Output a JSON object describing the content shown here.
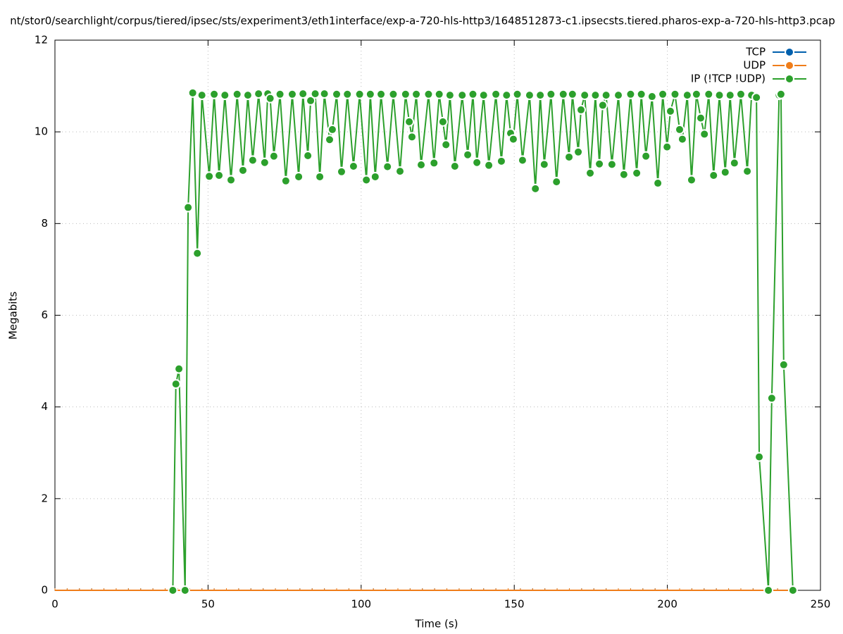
{
  "chart_data": {
    "type": "line",
    "title": "nt/stor0/searchlight/corpus/tiered/ipsec/sts/experiment3/eth1interface/exp-a-720-hls-http3/1648512873-c1.ipsecsts.tiered.pharos-exp-a-720-hls-http3.pcap",
    "x_label": "Time (s)",
    "y_label": "Megabits",
    "xlim": [
      0,
      250
    ],
    "xticks": [
      0,
      50,
      100,
      150,
      200,
      250
    ],
    "ylim": [
      0,
      12
    ],
    "yticks": [
      0,
      2,
      4,
      6,
      8,
      10,
      12
    ],
    "grid": true,
    "legend": "top-right",
    "series": [
      {
        "name": "TCP",
        "color": "#0060ad",
        "x": [
          0,
          4,
          8,
          12,
          16,
          20,
          24,
          28,
          32,
          36,
          40,
          44,
          48,
          52,
          56,
          60,
          64,
          68,
          72,
          76,
          80,
          84,
          88,
          92,
          96,
          100,
          104,
          108,
          112,
          116,
          120,
          124,
          128,
          132,
          136,
          140,
          144,
          148,
          152,
          156,
          160,
          164,
          168,
          172,
          176,
          180,
          184,
          188,
          192,
          196,
          200,
          204,
          208,
          212,
          216,
          220,
          224,
          228,
          232,
          236,
          240
        ],
        "values": [
          0,
          0,
          0,
          0,
          0,
          0,
          0,
          0,
          0,
          0,
          0,
          0,
          0,
          0,
          0,
          0,
          0,
          0,
          0,
          0,
          0,
          0,
          0,
          0,
          0,
          0,
          0,
          0,
          0,
          0,
          0,
          0,
          0,
          0,
          0,
          0,
          0,
          0,
          0,
          0,
          0,
          0,
          0,
          0,
          0,
          0,
          0,
          0,
          0,
          0,
          0,
          0,
          0,
          0,
          0,
          0,
          0,
          0,
          0,
          0,
          0
        ]
      },
      {
        "name": "UDP",
        "color": "#ef7d1a",
        "x": [
          0,
          4,
          8,
          12,
          16,
          20,
          24,
          28,
          32,
          36,
          40,
          44,
          48,
          52,
          56,
          60,
          64,
          68,
          72,
          76,
          80,
          84,
          88,
          92,
          96,
          100,
          104,
          108,
          112,
          116,
          120,
          124,
          128,
          132,
          136,
          140,
          144,
          148,
          152,
          156,
          160,
          164,
          168,
          172,
          176,
          180,
          184,
          188,
          192,
          196,
          200,
          204,
          208,
          212,
          216,
          220,
          224,
          228,
          232,
          236,
          240
        ],
        "values": [
          0,
          0,
          0,
          0,
          0,
          0,
          0,
          0,
          0,
          0,
          0,
          0,
          0,
          0,
          0,
          0,
          0,
          0,
          0,
          0,
          0,
          0,
          0,
          0,
          0,
          0,
          0,
          0,
          0,
          0,
          0,
          0,
          0,
          0,
          0,
          0,
          0,
          0,
          0,
          0,
          0,
          0,
          0,
          0,
          0,
          0,
          0,
          0,
          0,
          0,
          0,
          0,
          0,
          0,
          0,
          0,
          0,
          0,
          0,
          0,
          0
        ]
      },
      {
        "name": "IP (!TCP  !UDP)",
        "color": "#2ca02c",
        "x": [
          38.5,
          39.5,
          40.5,
          42.5,
          43.5,
          45,
          46.5,
          48,
          50.4,
          52,
          53.6,
          55.5,
          57.5,
          59.5,
          61.4,
          63,
          64.6,
          66.5,
          68.5,
          69.5,
          70.3,
          71.5,
          73.5,
          75.4,
          77.5,
          79.6,
          81,
          82.6,
          83.5,
          85,
          86.5,
          88,
          89.7,
          90.6,
          92,
          93.6,
          95.5,
          97.5,
          99.5,
          101.7,
          103,
          104.6,
          106.5,
          108.6,
          110.5,
          112.7,
          114.5,
          115.7,
          116.6,
          118,
          119.6,
          122,
          123.8,
          125.5,
          126.7,
          127.7,
          129,
          130.6,
          133,
          134.8,
          136.5,
          137.8,
          140,
          141.7,
          144,
          145.8,
          147.5,
          148.8,
          149.7,
          151,
          152.7,
          155,
          156.9,
          158.5,
          159.8,
          162,
          163.8,
          166,
          167.9,
          169,
          170.9,
          171.8,
          173,
          174.8,
          176.5,
          177.8,
          178.9,
          180,
          181.9,
          184,
          185.8,
          188,
          190,
          191.5,
          193,
          195,
          196.9,
          198.5,
          199.9,
          201,
          202.5,
          204,
          204.9,
          206.5,
          207.9,
          209.5,
          210.9,
          212.1,
          213.5,
          215.1,
          217,
          218.9,
          220.5,
          221.9,
          224,
          226.1,
          227.5,
          229.1,
          230,
          233,
          234.1,
          236.5,
          237.1,
          238,
          241
        ],
        "values": [
          0,
          4.5,
          4.83,
          0,
          8.35,
          10.85,
          7.35,
          10.8,
          9.03,
          10.82,
          9.05,
          10.8,
          8.95,
          10.82,
          9.16,
          10.8,
          9.38,
          10.83,
          9.33,
          10.83,
          10.73,
          9.47,
          10.82,
          8.93,
          10.82,
          9.02,
          10.83,
          9.48,
          10.68,
          10.83,
          9.02,
          10.83,
          9.83,
          10.05,
          10.82,
          9.13,
          10.82,
          9.25,
          10.82,
          8.95,
          10.82,
          9.02,
          10.82,
          9.24,
          10.82,
          9.14,
          10.82,
          10.22,
          9.89,
          10.82,
          9.28,
          10.82,
          9.32,
          10.82,
          10.22,
          9.72,
          10.8,
          9.25,
          10.8,
          9.5,
          10.82,
          9.33,
          10.8,
          9.27,
          10.82,
          9.36,
          10.8,
          9.97,
          9.84,
          10.82,
          9.38,
          10.8,
          8.76,
          10.8,
          9.29,
          10.82,
          8.91,
          10.82,
          9.45,
          10.82,
          9.56,
          10.48,
          10.8,
          9.1,
          10.8,
          9.3,
          10.58,
          10.8,
          9.29,
          10.8,
          9.07,
          10.82,
          9.1,
          10.82,
          9.47,
          10.77,
          8.88,
          10.82,
          9.67,
          10.45,
          10.82,
          10.05,
          9.84,
          10.8,
          8.95,
          10.82,
          10.3,
          9.95,
          10.82,
          9.05,
          10.8,
          9.12,
          10.8,
          9.32,
          10.82,
          9.14,
          10.8,
          10.75,
          2.91,
          0,
          4.19,
          10.8,
          10.82,
          4.92,
          0
        ]
      }
    ]
  }
}
